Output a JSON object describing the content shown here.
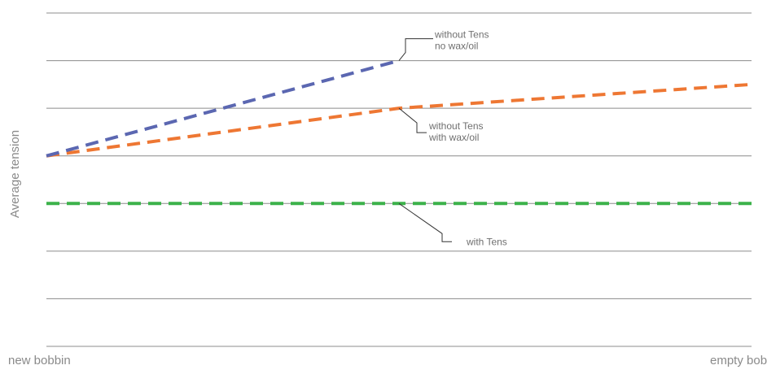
{
  "chart_data": {
    "type": "line",
    "title": "",
    "ylabel": "Average tension",
    "xlabel": "",
    "x_tick_labels": [
      "new bobbin",
      "empty bobbin"
    ],
    "x": [
      0,
      0.5,
      1
    ],
    "ylim": [
      0,
      7
    ],
    "grid": true,
    "series": [
      {
        "label_lines": [
          "without Tens",
          "no wax/oil"
        ],
        "color": "#5b67b1",
        "dashed": true,
        "values": [
          4,
          6,
          null
        ]
      },
      {
        "label_lines": [
          "without Tens",
          "with wax/oil"
        ],
        "color": "#ee7733",
        "dashed": true,
        "values": [
          4,
          5,
          5.5
        ]
      },
      {
        "label_lines": [
          "with Tens"
        ],
        "color": "#3cb24a",
        "dashed": true,
        "values": [
          3,
          3,
          3
        ]
      }
    ]
  }
}
